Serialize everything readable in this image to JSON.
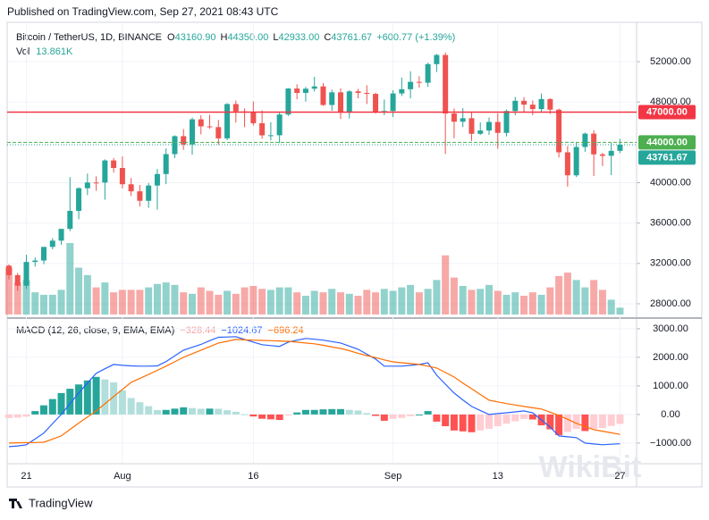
{
  "header": {
    "published": "Published on TradingView.com, Sep 27, 2021 08:43 UTC"
  },
  "chart_data": {
    "type": "candlestick",
    "symbol": "Bitcoin / TetherUS, 1D, BINANCE",
    "legend_ohlc": [
      {
        "key": "O",
        "value": "43160.90"
      },
      {
        "key": "H",
        "value": "44350.00"
      },
      {
        "key": "L",
        "value": "42933.00"
      },
      {
        "key": "C",
        "value": "43761.67"
      }
    ],
    "change": "+600.77 (+1.39%)",
    "volume_label": "Vol",
    "volume_value": "13.861K",
    "up_color": "#26a69a",
    "down_color": "#ef5350",
    "xlim": [
      -0.2,
      71.9
    ],
    "xticks": [
      {
        "value": 2,
        "label": "21"
      },
      {
        "value": 13,
        "label": "Aug"
      },
      {
        "value": 28,
        "label": "16"
      },
      {
        "value": 44,
        "label": "Sep"
      },
      {
        "value": 56,
        "label": "13"
      },
      {
        "value": 70,
        "label": "27"
      }
    ],
    "ylim": [
      26670,
      55900
    ],
    "yticks": [
      {
        "value": 28000,
        "label": "28000.00"
      },
      {
        "value": 32000,
        "label": "32000.00"
      },
      {
        "value": 36000,
        "label": "36000.00"
      },
      {
        "value": 40000,
        "label": "40000.00"
      },
      {
        "value": 48000,
        "label": "48000.00"
      },
      {
        "value": 52000,
        "label": "52000.00"
      }
    ],
    "open": [
      31778,
      30839,
      29790,
      32145,
      32287,
      33635,
      34258,
      35425,
      37208,
      39456,
      40020,
      40017,
      42207,
      41461,
      39846,
      39147,
      38207,
      39723,
      40862,
      42836,
      44614,
      43792,
      46285,
      45585,
      45511,
      44399,
      47800,
      47068,
      46974,
      45901,
      44696,
      44705,
      46760,
      49339,
      48905,
      49321,
      49546,
      47707,
      48960,
      46942,
      49058,
      48903,
      48807,
      46991,
      47110,
      48848,
      49269,
      49997,
      49915,
      51756,
      52663,
      46863,
      46048,
      46395,
      44850,
      45173,
      46025,
      44940,
      47112,
      48122,
      47737,
      47299,
      48293,
      47241,
      43015,
      40734,
      43543,
      44865,
      42810,
      42670,
      43160.9
    ],
    "high": [
      31899,
      31063,
      32858,
      32595,
      33650,
      34500,
      35398,
      40550,
      39542,
      40900,
      40640,
      42317,
      42449,
      42599,
      40459,
      39780,
      39969,
      41350,
      43392,
      44700,
      45310,
      46454,
      46700,
      46743,
      46218,
      47886,
      48144,
      47372,
      48053,
      47160,
      46000,
      47033,
      49382,
      49757,
      49500,
      50500,
      49875,
      49229,
      49368,
      49170,
      49309,
      49667,
      48928,
      48246,
      49170,
      50420,
      51054,
      50558,
      51900,
      52780,
      52920,
      47359,
      47400,
      47031,
      45987,
      46460,
      46880,
      47250,
      48500,
      48486,
      48150,
      48843,
      48372,
      47347,
      43639,
      44000,
      44978,
      45200,
      42966,
      43950,
      44350
    ],
    "low": [
      30407,
      29278,
      29482,
      31691,
      31925,
      33401,
      33851,
      35205,
      36383,
      38772,
      39200,
      38323,
      41000,
      39423,
      38690,
      37642,
      37508,
      37332,
      39853,
      42446,
      43261,
      42779,
      44800,
      45341,
      43770,
      44217,
      45971,
      45500,
      45660,
      44376,
      44203,
      43927,
      46622,
      48273,
      48050,
      49029,
      47600,
      47137,
      46315,
      46364,
      48370,
      47801,
      46853,
      46700,
      46512,
      48582,
      48361,
      49400,
      49497,
      50969,
      42843,
      44412,
      45513,
      44132,
      44730,
      44742,
      43370,
      44594,
      46682,
      47020,
      46699,
      47035,
      46829,
      42500,
      39600,
      40565,
      43069,
      40675,
      41646,
      40750,
      42933
    ],
    "close": [
      30839,
      29790,
      32145,
      32287,
      33635,
      34258,
      35425,
      37208,
      39456,
      40020,
      40017,
      42207,
      41461,
      39846,
      39147,
      38207,
      39723,
      40862,
      42836,
      44614,
      43792,
      46285,
      45585,
      45511,
      44399,
      47800,
      47068,
      46974,
      45901,
      44696,
      44705,
      46760,
      49339,
      48905,
      49321,
      49546,
      47707,
      48960,
      46942,
      49058,
      48903,
      48807,
      46991,
      47110,
      48848,
      49269,
      49997,
      49915,
      51756,
      52663,
      46863,
      46048,
      46395,
      44850,
      45173,
      46025,
      44940,
      47112,
      48122,
      47737,
      47299,
      48293,
      47241,
      43015,
      40734,
      43543,
      44865,
      42810,
      42670,
      43160,
      43761.67
    ],
    "volume": [
      95,
      65,
      70,
      45,
      40,
      40,
      50,
      145,
      95,
      80,
      55,
      65,
      45,
      50,
      50,
      50,
      55,
      62,
      65,
      60,
      45,
      42,
      55,
      48,
      40,
      48,
      42,
      55,
      58,
      52,
      50,
      55,
      55,
      45,
      38,
      48,
      45,
      52,
      45,
      42,
      38,
      50,
      45,
      52,
      48,
      55,
      60,
      45,
      52,
      70,
      120,
      75,
      58,
      50,
      52,
      60,
      48,
      40,
      45,
      38,
      45,
      40,
      55,
      78,
      85,
      70,
      55,
      70,
      50,
      30,
      13.861
    ],
    "price_lines": [
      {
        "value": 47000,
        "label": "47000.00",
        "color": "#f23645"
      },
      {
        "value": 44000,
        "label": "44000.00",
        "color": "#4caf50"
      },
      {
        "value": 43761.67,
        "label": "43761.67",
        "color": "#26a69a"
      }
    ],
    "macd": {
      "title": "MACD (12, 26, close, 9, EMA, EMA)",
      "ylim": [
        -1690,
        3340
      ],
      "yticks": [
        {
          "value": 3000,
          "label": "3000.00"
        },
        {
          "value": 2000,
          "label": "2000.00"
        },
        {
          "value": 1000,
          "label": "1000.00"
        },
        {
          "value": 0,
          "label": "0.00"
        },
        {
          "value": -1000,
          "label": "−1000.00"
        }
      ],
      "hist_colors": [
        "#26a69a",
        "#b2dfdb",
        "#ffcdd2",
        "#ff5252"
      ],
      "series": [
        {
          "name": "Histogram",
          "color": "#f8a5a5",
          "last_label": "−328.44",
          "values": [
            -125,
            -110,
            -75,
            120,
            320,
            540,
            750,
            900,
            1050,
            1190,
            1315,
            1225,
            1125,
            845,
            575,
            430,
            290,
            155,
            160,
            205,
            250,
            225,
            200,
            205,
            200,
            150,
            95,
            10,
            -70,
            -150,
            -170,
            -190,
            -30,
            70,
            160,
            160,
            180,
            190,
            190,
            160,
            140,
            50,
            -50,
            -220,
            -150,
            -120,
            -60,
            0,
            120,
            -250,
            -410,
            -560,
            -590,
            -620,
            -560,
            -500,
            -410,
            -320,
            -240,
            -155,
            -175,
            -380,
            -520,
            -720,
            -610,
            -500,
            -580,
            -500,
            -475,
            -400,
            -328.44
          ]
        },
        {
          "name": "MACD",
          "color": "#2962ff",
          "last_label": "−1024.67",
          "values": [
            -1125,
            -1100,
            -1060,
            -860,
            -650,
            -320,
            0,
            380,
            750,
            1100,
            1440,
            1600,
            1750,
            1720,
            1700,
            1690,
            1690,
            1700,
            1850,
            2050,
            2250,
            2350,
            2450,
            2580,
            2700,
            2710,
            2720,
            2620,
            2530,
            2440,
            2410,
            2380,
            2530,
            2600,
            2660,
            2630,
            2600,
            2550,
            2500,
            2390,
            2280,
            2110,
            1940,
            1690,
            1690,
            1690,
            1720,
            1750,
            1810,
            1375,
            1060,
            750,
            510,
            280,
            140,
            0,
            30,
            60,
            90,
            125,
            60,
            -190,
            -440,
            -750,
            -780,
            -810,
            -1000,
            -1030,
            -1060,
            -1040,
            -1024.67
          ]
        },
        {
          "name": "Signal",
          "color": "#ff6d00",
          "last_label": "−696.24",
          "values": [
            -1000,
            -990,
            -985,
            -980,
            -970,
            -860,
            -750,
            -520,
            -300,
            -90,
            125,
            375,
            625,
            875,
            1125,
            1260,
            1400,
            1545,
            1690,
            1845,
            2000,
            2125,
            2250,
            2375,
            2500,
            2560,
            2625,
            2610,
            2600,
            2590,
            2580,
            2570,
            2560,
            2530,
            2500,
            2470,
            2420,
            2360,
            2310,
            2230,
            2140,
            2060,
            1990,
            1910,
            1840,
            1810,
            1780,
            1750,
            1690,
            1625,
            1470,
            1310,
            1100,
            900,
            700,
            500,
            440,
            380,
            330,
            280,
            235,
            190,
            80,
            -30,
            -170,
            -310,
            -420,
            -530,
            -585,
            -640,
            -696.24
          ]
        }
      ]
    }
  },
  "footer": {
    "brand": "TradingView"
  },
  "watermark": "WikiBit"
}
